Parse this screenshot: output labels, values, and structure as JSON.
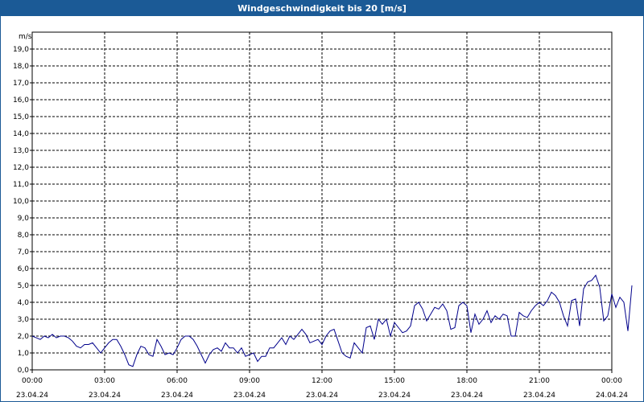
{
  "window": {
    "title": "Windgeschwindigkeit bis 20 [m/s]"
  },
  "chart_data": {
    "type": "line",
    "title": "Windgeschwindigkeit bis 20 [m/s]",
    "ylabel": "m/s",
    "xlabel": "",
    "ylim": [
      0,
      20
    ],
    "xlim_hours": [
      0,
      24
    ],
    "y_ticks": [
      "0,0",
      "1,0",
      "2,0",
      "3,0",
      "4,0",
      "5,0",
      "6,0",
      "7,0",
      "8,0",
      "9,0",
      "10,0",
      "11,0",
      "12,0",
      "13,0",
      "14,0",
      "15,0",
      "16,0",
      "17,0",
      "18,0",
      "19,0"
    ],
    "x_ticks": [
      {
        "time": "00:00",
        "date": "23.04.24"
      },
      {
        "time": "03:00",
        "date": "23.04.24"
      },
      {
        "time": "06:00",
        "date": "23.04.24"
      },
      {
        "time": "09:00",
        "date": "23.04.24"
      },
      {
        "time": "12:00",
        "date": "23.04.24"
      },
      {
        "time": "15:00",
        "date": "23.04.24"
      },
      {
        "time": "18:00",
        "date": "23.04.24"
      },
      {
        "time": "21:00",
        "date": "23.04.24"
      },
      {
        "time": "00:00",
        "date": "24.04.24"
      }
    ],
    "grid": true,
    "series": [
      {
        "name": "Windgeschwindigkeit",
        "color": "#00008b",
        "step_minutes": 10,
        "values": [
          2.0,
          1.9,
          1.8,
          2.0,
          1.9,
          2.1,
          1.9,
          2.0,
          2.0,
          1.9,
          1.7,
          1.4,
          1.3,
          1.5,
          1.5,
          1.6,
          1.3,
          1.0,
          1.3,
          1.6,
          1.8,
          1.8,
          1.4,
          0.9,
          0.3,
          0.2,
          0.9,
          1.4,
          1.3,
          0.9,
          0.8,
          1.8,
          1.4,
          0.9,
          1.0,
          0.9,
          1.3,
          1.8,
          2.0,
          2.0,
          1.8,
          1.4,
          0.9,
          0.4,
          0.9,
          1.2,
          1.3,
          1.1,
          1.6,
          1.3,
          1.3,
          1.0,
          1.3,
          0.8,
          0.9,
          1.0,
          0.5,
          0.8,
          0.8,
          1.3,
          1.3,
          1.6,
          1.9,
          1.5,
          2.0,
          1.8,
          2.1,
          2.4,
          2.1,
          1.6,
          1.7,
          1.8,
          1.5,
          2.0,
          2.3,
          2.4,
          1.7,
          1.0,
          0.8,
          0.7,
          1.6,
          1.3,
          1.0,
          2.5,
          2.6,
          1.8,
          3.0,
          2.7,
          3.0,
          2.0,
          2.8,
          2.5,
          2.2,
          2.3,
          2.6,
          3.8,
          4.0,
          3.6,
          2.9,
          3.3,
          3.7,
          3.6,
          3.9,
          3.5,
          2.4,
          2.5,
          3.8,
          4.0,
          3.8,
          2.2,
          3.3,
          2.7,
          3.0,
          3.5,
          2.8,
          3.2,
          3.0,
          3.3,
          3.2,
          2.0,
          2.0,
          3.4,
          3.2,
          3.1,
          3.5,
          3.8,
          4.0,
          3.8,
          4.1,
          4.6,
          4.4,
          4.0,
          3.2,
          2.6,
          4.1,
          4.2,
          2.6,
          4.8,
          5.2,
          5.3,
          5.6,
          4.9,
          2.9,
          3.2,
          4.5,
          3.7,
          4.3,
          4.0,
          2.3,
          5.0
        ]
      }
    ]
  }
}
